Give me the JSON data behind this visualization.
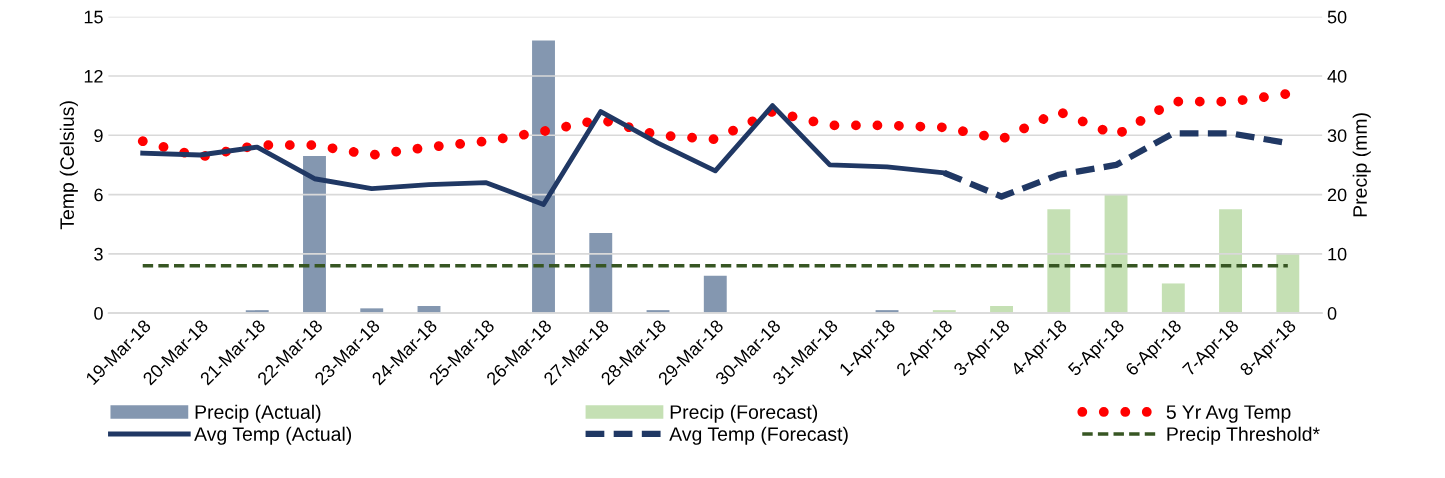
{
  "chart_data": {
    "type": "bar",
    "ylabel": "Temp (Celsius)",
    "y2label": "Precip (mm)",
    "categories": [
      "19-Mar-18",
      "20-Mar-18",
      "21-Mar-18",
      "22-Mar-18",
      "23-Mar-18",
      "24-Mar-18",
      "25-Mar-18",
      "26-Mar-18",
      "27-Mar-18",
      "28-Mar-18",
      "29-Mar-18",
      "30-Mar-18",
      "31-Mar-18",
      "1-Apr-18",
      "2-Apr-18",
      "3-Apr-18",
      "4-Apr-18",
      "5-Apr-18",
      "6-Apr-18",
      "7-Apr-18",
      "8-Apr-18"
    ],
    "series": [
      {
        "name": "Precip (Actual)",
        "axis": "y2",
        "color": "#8497b0",
        "values": [
          null,
          null,
          0.5,
          26.5,
          0.8,
          1.2,
          null,
          46,
          13.5,
          0.5,
          6.3,
          null,
          null,
          0.5,
          null,
          null,
          null,
          null,
          null,
          null,
          null
        ]
      },
      {
        "name": "Precip (Forecast)",
        "axis": "y2",
        "color": "#c5e0b4",
        "values": [
          null,
          null,
          null,
          null,
          null,
          null,
          null,
          null,
          null,
          null,
          null,
          null,
          null,
          null,
          0.5,
          1.2,
          17.5,
          20,
          5,
          17.5,
          10
        ]
      },
      {
        "name": "5 Yr Avg Temp",
        "type": "line",
        "line_style": "dotted",
        "color": "#ff0000",
        "values": [
          8.7,
          7.9,
          8.5,
          8.5,
          8.0,
          8.4,
          8.7,
          9.2,
          9.8,
          9.0,
          8.8,
          10.2,
          9.5,
          9.5,
          9.4,
          8.8,
          10.2,
          9.0,
          10.7,
          10.7,
          11.1
        ]
      },
      {
        "name": "Avg Temp (Actual)",
        "type": "line",
        "line_style": "solid",
        "color": "#203864",
        "values": [
          8.1,
          8.0,
          8.4,
          6.8,
          6.3,
          6.5,
          6.6,
          5.5,
          10.2,
          8.6,
          7.2,
          10.5,
          7.5,
          7.4,
          7.1,
          null,
          null,
          null,
          null,
          null,
          null
        ]
      },
      {
        "name": "Avg Temp (Forecast)",
        "type": "line",
        "line_style": "dashed",
        "color": "#203864",
        "values": [
          null,
          null,
          null,
          null,
          null,
          null,
          null,
          null,
          null,
          null,
          null,
          null,
          null,
          null,
          7.1,
          5.9,
          7.0,
          7.5,
          9.1,
          9.1,
          8.6
        ]
      }
    ],
    "ref_lines": [
      {
        "axis": "y2",
        "value": 8,
        "label": "Precip Threshold*",
        "color": "#375623",
        "line_style": "dashed"
      }
    ],
    "ylim": [
      0,
      15
    ],
    "yticks": [
      0,
      3,
      6,
      9,
      12,
      15
    ],
    "y2lim": [
      0,
      50
    ],
    "y2ticks": [
      0,
      10,
      20,
      30,
      40,
      50
    ],
    "grid": "y",
    "legend": "bottom"
  }
}
